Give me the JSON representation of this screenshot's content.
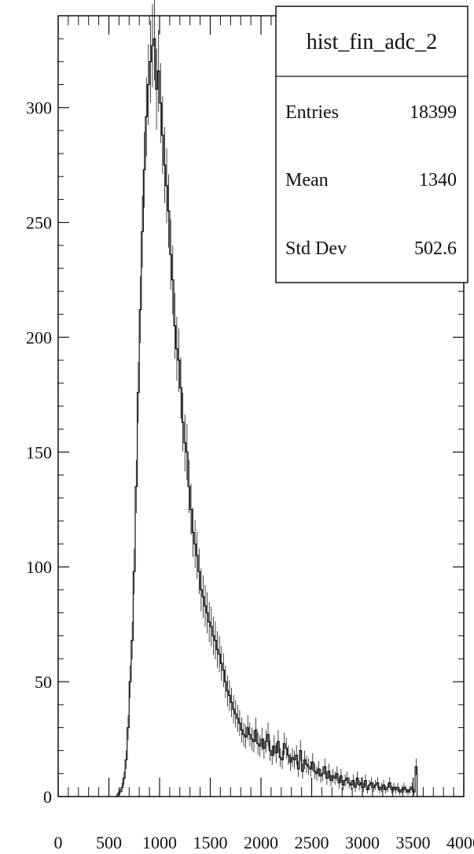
{
  "chart_data": {
    "type": "histogram",
    "title": "",
    "xlabel": "",
    "ylabel": "",
    "xlim": [
      0,
      4000
    ],
    "ylim": [
      0,
      340
    ],
    "grid": false,
    "x_ticks": [
      {
        "value": 0,
        "label": "0"
      },
      {
        "value": 500,
        "label": "500"
      },
      {
        "value": 1000,
        "label": "1000"
      },
      {
        "value": 1500,
        "label": "1500"
      },
      {
        "value": 2000,
        "label": "2000"
      },
      {
        "value": 2500,
        "label": "2500"
      },
      {
        "value": 3000,
        "label": "3000"
      },
      {
        "value": 3500,
        "label": "3500"
      },
      {
        "value": 4000,
        "label": "4000"
      }
    ],
    "y_ticks": [
      {
        "value": 0,
        "label": "0"
      },
      {
        "value": 50,
        "label": "50"
      },
      {
        "value": 100,
        "label": "100"
      },
      {
        "value": 150,
        "label": "150"
      },
      {
        "value": 200,
        "label": "200"
      },
      {
        "value": 250,
        "label": "250"
      },
      {
        "value": 300,
        "label": "300"
      }
    ],
    "series": [
      {
        "name": "hist_fin_adc_2",
        "color": "#111111",
        "bin_width": 20,
        "x": [
          560,
          580,
          600,
          620,
          640,
          660,
          680,
          700,
          720,
          740,
          760,
          780,
          800,
          820,
          840,
          860,
          880,
          900,
          920,
          940,
          960,
          980,
          1000,
          1020,
          1040,
          1060,
          1080,
          1100,
          1120,
          1140,
          1160,
          1180,
          1200,
          1220,
          1240,
          1260,
          1280,
          1300,
          1320,
          1340,
          1360,
          1380,
          1400,
          1420,
          1440,
          1460,
          1480,
          1500,
          1520,
          1540,
          1560,
          1580,
          1600,
          1620,
          1640,
          1660,
          1680,
          1700,
          1720,
          1740,
          1760,
          1780,
          1800,
          1820,
          1840,
          1860,
          1880,
          1900,
          1920,
          1940,
          1960,
          1980,
          2000,
          2020,
          2040,
          2060,
          2080,
          2100,
          2120,
          2140,
          2160,
          2180,
          2200,
          2220,
          2240,
          2260,
          2280,
          2300,
          2320,
          2340,
          2360,
          2380,
          2400,
          2420,
          2440,
          2460,
          2480,
          2500,
          2520,
          2540,
          2560,
          2580,
          2600,
          2620,
          2640,
          2660,
          2680,
          2700,
          2720,
          2740,
          2760,
          2780,
          2800,
          2820,
          2840,
          2860,
          2880,
          2900,
          2920,
          2940,
          2960,
          2980,
          3000,
          3020,
          3040,
          3060,
          3080,
          3100,
          3120,
          3140,
          3160,
          3180,
          3200,
          3220,
          3240,
          3260,
          3280,
          3300,
          3320,
          3340,
          3360,
          3380,
          3400,
          3420,
          3440,
          3460,
          3480,
          3500,
          3520,
          3540
        ],
        "values": [
          0,
          1,
          2,
          4,
          8,
          16,
          30,
          50,
          68,
          98,
          135,
          176,
          212,
          246,
          273,
          296,
          310,
          320,
          327,
          330,
          308,
          316,
          302,
          288,
          275,
          266,
          255,
          236,
          225,
          205,
          195,
          190,
          178,
          163,
          154,
          150,
          135,
          125,
          115,
          110,
          105,
          98,
          90,
          87,
          83,
          80,
          76,
          74,
          70,
          68,
          64,
          62,
          58,
          55,
          50,
          46,
          44,
          41,
          38,
          36,
          34,
          32,
          29,
          27,
          26,
          30,
          27,
          25,
          24,
          29,
          23,
          22,
          25,
          21,
          24,
          27,
          20,
          18,
          22,
          19,
          24,
          17,
          16,
          23,
          21,
          18,
          15,
          17,
          16,
          18,
          12,
          20,
          11,
          16,
          14,
          13,
          12,
          15,
          11,
          10,
          12,
          9,
          10,
          13,
          8,
          11,
          7,
          9,
          8,
          10,
          6,
          9,
          5,
          7,
          8,
          6,
          5,
          7,
          4,
          8,
          5,
          6,
          4,
          7,
          3,
          5,
          6,
          4,
          5,
          6,
          3,
          4,
          5,
          3,
          4,
          6,
          3,
          4,
          3,
          4,
          2,
          3,
          4,
          3,
          2,
          3,
          4,
          2,
          13,
          0
        ]
      }
    ]
  },
  "stats_box": {
    "title": "hist_fin_adc_2",
    "rows": [
      {
        "label": "Entries",
        "value": "18399"
      },
      {
        "label": "Mean",
        "value": "1340"
      },
      {
        "label": "Std Dev",
        "value": "502.6"
      }
    ]
  }
}
